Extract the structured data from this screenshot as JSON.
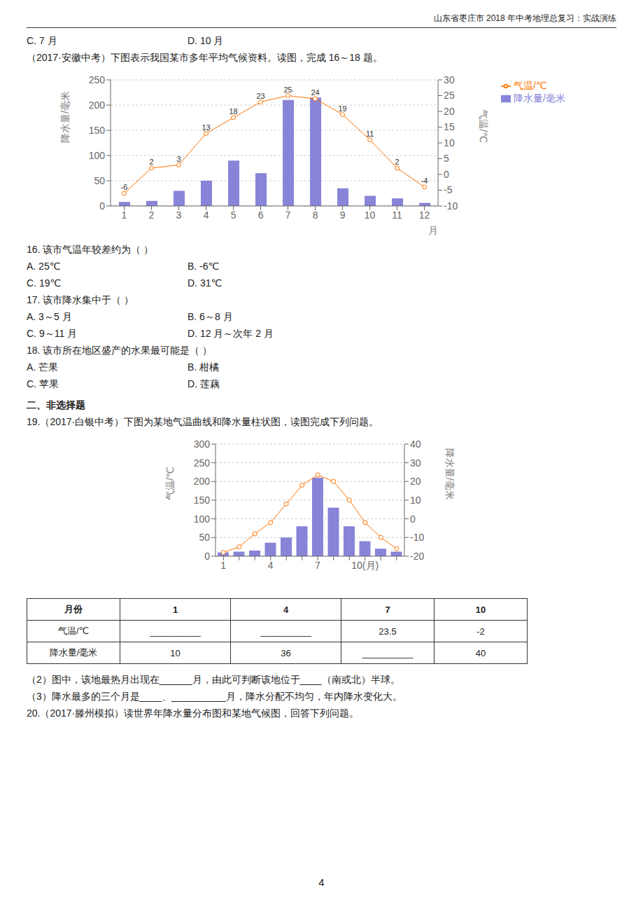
{
  "header": "山东省枣庄市 2018 年中考地理总复习：实战演练",
  "page_number": "4",
  "chart_data": [
    {
      "type": "bar",
      "text_before": [
        [
          "C. 7 月",
          "D. 10 月"
        ]
      ],
      "title": "（2017·安徽中考）下图表示我国某市多年平均气候资料。读图，完成 16～18 题。",
      "categories": [
        "1",
        "2",
        "3",
        "4",
        "5",
        "6",
        "7",
        "8",
        "9",
        "10",
        "11",
        "12"
      ],
      "xlabel": "月",
      "ylabel": "降水量/毫米",
      "y2label": "气温/℃",
      "series": [
        {
          "name": "降水量/毫米",
          "type": "bar",
          "values": [
            8,
            10,
            30,
            50,
            90,
            65,
            210,
            215,
            35,
            20,
            15,
            6
          ]
        },
        {
          "name": "气温/℃",
          "type": "line",
          "axis": "y2",
          "marker": "circle",
          "data_labels": true,
          "values": [
            -6,
            2,
            3,
            13,
            18,
            23,
            25,
            24,
            19,
            11,
            2,
            -4
          ]
        }
      ],
      "ylim": [
        0,
        250
      ],
      "yticks": [
        0,
        50,
        100,
        150,
        200,
        250
      ],
      "y2lim": [
        -10,
        30
      ],
      "y2ticks": [
        -10,
        -5,
        0,
        5,
        10,
        15,
        20,
        25,
        30
      ],
      "grid": true,
      "legend": "right",
      "text_after": [
        "16. 该市气温年较差约为（     ）",
        [
          "A. 25℃",
          "B. -6℃"
        ],
        [
          "C. 19℃",
          "D. 31℃"
        ],
        "17. 该市降水集中于（     ）",
        [
          "A. 3～5 月",
          "B. 6～8 月"
        ],
        [
          "C. 9～11 月",
          "D. 12 月～次年 2 月"
        ],
        "18. 该市所在地区盛产的水果最可能是（       ）",
        [
          "A. 芒果",
          "B. 柑橘"
        ],
        [
          "C. 苹果",
          "D. 莲藕"
        ]
      ]
    },
    {
      "type": "bar",
      "heading": "二、非选择题",
      "title": "19.（2017·白银中考）下图为某地气温曲线和降水量柱状图，读图完成下列问题。",
      "categories": [
        "1",
        null,
        null,
        "4",
        null,
        null,
        "7",
        null,
        null,
        "10(月)",
        null,
        null
      ],
      "ylabel": "气温/℃",
      "y2label": "降水量/毫米",
      "series": [
        {
          "type": "bar",
          "values": [
            10,
            12,
            15,
            36,
            50,
            80,
            210,
            130,
            80,
            40,
            20,
            12
          ]
        },
        {
          "type": "line",
          "axis": "y2",
          "marker": "circle",
          "values": [
            -18,
            -15,
            -8,
            -2,
            8,
            18,
            23.5,
            20,
            10,
            -2,
            -10,
            -16
          ]
        }
      ],
      "ylim": [
        0,
        300
      ],
      "yticks": [
        0,
        50,
        100,
        150,
        200,
        250,
        300
      ],
      "y2lim": [
        -20,
        40
      ],
      "y2ticks": [
        -20,
        -10,
        0,
        10,
        20,
        30,
        40
      ],
      "grid": true,
      "table": [
        [
          "月份",
          "1",
          "4",
          "7",
          "10"
        ],
        [
          "气温/℃",
          "__________",
          "__________",
          "23.5",
          "-2"
        ],
        [
          "降水量/毫米",
          "10",
          "36",
          "__________",
          "40"
        ]
      ],
      "text_after": [
        "（2）图中，该地最热月出现在______月，由此可判断该地位于____（南或北）半球。",
        "（3）降水最多的三个月是____、__________月，降水分配不均匀，年内降水变化大。",
        "20.（2017·滕州模拟）读世界年降水量分布图和某地气候图，回答下列问题。"
      ]
    }
  ]
}
